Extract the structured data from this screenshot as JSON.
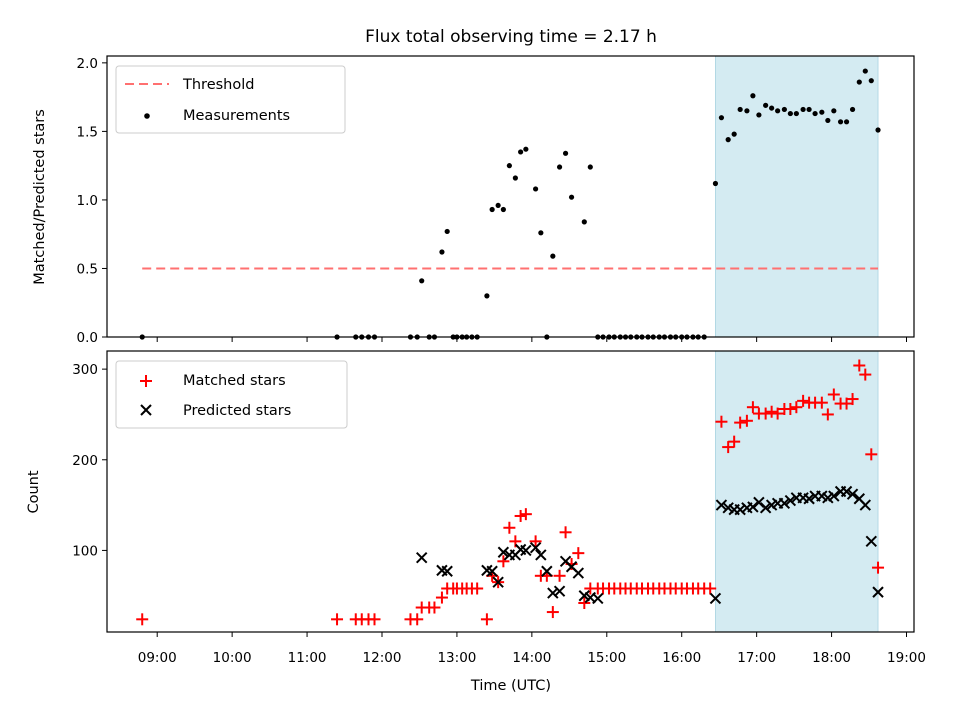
{
  "chart_data": [
    {
      "type": "scatter",
      "title": "Flux total observing time = 2.17 h",
      "xlabel": "",
      "ylabel": "Matched/Predicted stars",
      "xlim": [
        8.33,
        19.1
      ],
      "ylim": [
        0,
        2.05
      ],
      "yticks": [
        0.0,
        0.5,
        1.0,
        1.5,
        2.0
      ],
      "ytick_labels": [
        "0.0",
        "0.5",
        "1.0",
        "1.5",
        "2.0"
      ],
      "shaded_region": {
        "x_start": 16.45,
        "x_end": 18.62,
        "color": "#d4ebf2"
      },
      "threshold": {
        "label": "Threshold",
        "value": 0.5,
        "x_start": 8.8,
        "x_end": 18.62,
        "color": "#ff7070"
      },
      "legend": [
        "Threshold",
        "Measurements"
      ],
      "series": [
        {
          "name": "Measurements",
          "color": "#000000",
          "x": [
            8.8,
            11.4,
            11.65,
            11.73,
            11.82,
            11.9,
            12.38,
            12.47,
            12.53,
            12.63,
            12.7,
            12.8,
            12.87,
            12.95,
            13.0,
            13.07,
            13.13,
            13.2,
            13.27,
            13.4,
            13.47,
            13.55,
            13.62,
            13.7,
            13.78,
            13.85,
            13.92,
            14.05,
            14.12,
            14.2,
            14.28,
            14.37,
            14.45,
            14.53,
            14.7,
            14.78,
            14.88,
            14.95,
            15.03,
            15.1,
            15.18,
            15.25,
            15.32,
            15.4,
            15.47,
            15.55,
            15.62,
            15.7,
            15.77,
            15.85,
            15.92,
            16.0,
            16.07,
            16.15,
            16.22,
            16.3,
            16.45,
            16.53,
            16.62,
            16.7,
            16.78,
            16.87,
            16.95,
            17.03,
            17.12,
            17.2,
            17.28,
            17.37,
            17.45,
            17.53,
            17.62,
            17.7,
            17.78,
            17.87,
            17.95,
            18.03,
            18.12,
            18.2,
            18.28,
            18.37,
            18.45,
            18.53,
            18.62
          ],
          "y": [
            0,
            0,
            0,
            0,
            0,
            0,
            0,
            0,
            0.41,
            0,
            0,
            0.62,
            0.77,
            0,
            0,
            0,
            0,
            0,
            0,
            0.3,
            0.93,
            0.96,
            0.93,
            1.25,
            1.16,
            1.35,
            1.37,
            1.08,
            0.76,
            0,
            0.59,
            1.24,
            1.34,
            1.02,
            0.84,
            1.24,
            0,
            0,
            0,
            0,
            0,
            0,
            0,
            0,
            0,
            0,
            0,
            0,
            0,
            0,
            0,
            0,
            0,
            0,
            0,
            0,
            1.12,
            1.6,
            1.44,
            1.48,
            1.66,
            1.65,
            1.76,
            1.62,
            1.69,
            1.67,
            1.65,
            1.66,
            1.63,
            1.63,
            1.66,
            1.66,
            1.63,
            1.64,
            1.58,
            1.65,
            1.57,
            1.57,
            1.66,
            1.86,
            1.94,
            1.87,
            1.51
          ]
        }
      ]
    },
    {
      "type": "scatter",
      "title": "",
      "xlabel": "Time (UTC)",
      "ylabel": "Count",
      "xlim": [
        8.33,
        19.1
      ],
      "ylim": [
        10,
        320
      ],
      "yticks": [
        100,
        200,
        300
      ],
      "ytick_labels": [
        "100",
        "200",
        "300"
      ],
      "xticks": [
        9,
        10,
        11,
        12,
        13,
        14,
        15,
        16,
        17,
        18,
        19
      ],
      "xtick_labels": [
        "09:00",
        "10:00",
        "11:00",
        "12:00",
        "13:00",
        "14:00",
        "15:00",
        "16:00",
        "17:00",
        "18:00",
        "19:00"
      ],
      "shaded_region": {
        "x_start": 16.45,
        "x_end": 18.62,
        "color": "#d4ebf2"
      },
      "legend": [
        "Matched stars",
        "Predicted stars"
      ],
      "series": [
        {
          "name": "Matched stars",
          "marker": "+",
          "color": "#ff0000",
          "x": [
            8.8,
            11.4,
            11.65,
            11.73,
            11.82,
            11.9,
            12.38,
            12.47,
            12.53,
            12.63,
            12.7,
            12.8,
            12.87,
            12.95,
            13.0,
            13.07,
            13.13,
            13.2,
            13.27,
            13.4,
            13.47,
            13.55,
            13.62,
            13.7,
            13.78,
            13.85,
            13.92,
            14.05,
            14.12,
            14.2,
            14.28,
            14.37,
            14.45,
            14.53,
            14.62,
            14.7,
            14.78,
            14.88,
            14.95,
            15.03,
            15.1,
            15.18,
            15.25,
            15.32,
            15.4,
            15.47,
            15.55,
            15.62,
            15.7,
            15.77,
            15.85,
            15.92,
            16.0,
            16.07,
            16.15,
            16.22,
            16.3,
            16.38,
            16.53,
            16.62,
            16.7,
            16.78,
            16.87,
            16.95,
            17.03,
            17.12,
            17.2,
            17.28,
            17.37,
            17.45,
            17.53,
            17.62,
            17.7,
            17.78,
            17.87,
            17.95,
            18.03,
            18.12,
            18.2,
            18.28,
            18.37,
            18.45,
            18.53,
            18.62
          ],
          "y": [
            24,
            24,
            24,
            24,
            24,
            24,
            24,
            24,
            37,
            37,
            37,
            48,
            58,
            58,
            58,
            58,
            58,
            58,
            58,
            24,
            72,
            65,
            88,
            125,
            110,
            138,
            140,
            110,
            72,
            72,
            32,
            72,
            120,
            85,
            97,
            42,
            58,
            58,
            58,
            58,
            58,
            58,
            58,
            58,
            58,
            58,
            58,
            58,
            58,
            58,
            58,
            58,
            58,
            58,
            58,
            58,
            58,
            58,
            242,
            214,
            220,
            241,
            243,
            258,
            251,
            251,
            253,
            251,
            256,
            256,
            258,
            265,
            263,
            263,
            263,
            250,
            272,
            262,
            262,
            267,
            304,
            294,
            206,
            81
          ]
        },
        {
          "name": "Predicted stars",
          "marker": "x",
          "color": "#000000",
          "x": [
            12.53,
            12.8,
            12.87,
            13.4,
            13.47,
            13.55,
            13.62,
            13.7,
            13.78,
            13.85,
            13.92,
            14.05,
            14.12,
            14.2,
            14.28,
            14.37,
            14.45,
            14.53,
            14.62,
            14.7,
            14.78,
            14.88,
            16.45,
            16.53,
            16.62,
            16.7,
            16.78,
            16.87,
            16.95,
            17.03,
            17.12,
            17.2,
            17.28,
            17.37,
            17.45,
            17.53,
            17.62,
            17.7,
            17.78,
            17.87,
            17.95,
            18.03,
            18.12,
            18.2,
            18.28,
            18.37,
            18.45,
            18.53,
            18.62
          ],
          "y": [
            92,
            78,
            77,
            78,
            77,
            65,
            98,
            95,
            95,
            101,
            100,
            103,
            95,
            77,
            53,
            55,
            88,
            82,
            75,
            50,
            48,
            47,
            47,
            150,
            147,
            145,
            145,
            147,
            148,
            153,
            147,
            150,
            152,
            152,
            155,
            158,
            158,
            157,
            160,
            160,
            158,
            160,
            165,
            165,
            162,
            157,
            150,
            110,
            54
          ]
        }
      ]
    }
  ]
}
